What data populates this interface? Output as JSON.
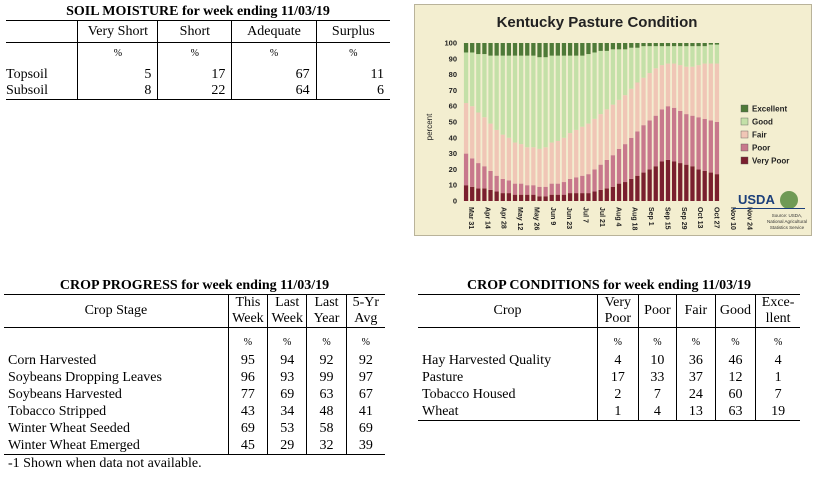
{
  "soil_moisture": {
    "title": "SOIL MOISTURE for week ending 11/03/19",
    "columns": [
      "Very Short",
      "Short",
      "Adequate",
      "Surplus"
    ],
    "pct": [
      "%",
      "%",
      "%",
      "%"
    ],
    "rows": [
      {
        "label": "Topsoil",
        "values": [
          "5",
          "17",
          "67",
          "11"
        ]
      },
      {
        "label": "Subsoil",
        "values": [
          "8",
          "22",
          "64",
          "6"
        ]
      }
    ]
  },
  "chart_data": {
    "type": "bar",
    "stacked": true,
    "title": "Kentucky Pasture Condition",
    "ylabel": "percent",
    "ylim": [
      0,
      100
    ],
    "yticks": [
      "0",
      "10",
      "20",
      "30",
      "40",
      "50",
      "60",
      "70",
      "80",
      "90",
      "100"
    ],
    "xticks": [
      "Mar 31",
      "Apr 14",
      "Apr 28",
      "May 12",
      "May 26",
      "Jun 9",
      "Jun 23",
      "Jul 7",
      "Jul 21",
      "Aug 4",
      "Aug 18",
      "Sep 1",
      "Sep 15",
      "Sep 29",
      "Oct 13",
      "Oct 27",
      "Nov 10",
      "Nov 24"
    ],
    "legend_position": "right",
    "source": [
      "Source: USDA,",
      "National Agricultural",
      "Statistics Service"
    ],
    "logo_text": "USDA",
    "series": [
      {
        "name": "Very Poor",
        "color": "#7a1f2e",
        "values": [
          10,
          9,
          8,
          8,
          7,
          6,
          5,
          5,
          4,
          4,
          4,
          4,
          3,
          3,
          4,
          4,
          4,
          5,
          5,
          5,
          5,
          6,
          7,
          8,
          9,
          11,
          12,
          14,
          16,
          18,
          20,
          22,
          25,
          26,
          25,
          24,
          23,
          22,
          20,
          19,
          18,
          17
        ]
      },
      {
        "name": "Poor",
        "color": "#c8788c",
        "values": [
          20,
          18,
          16,
          14,
          12,
          10,
          9,
          8,
          7,
          7,
          6,
          6,
          6,
          6,
          7,
          7,
          8,
          9,
          10,
          11,
          12,
          14,
          16,
          18,
          20,
          22,
          24,
          26,
          28,
          30,
          31,
          32,
          33,
          34,
          34,
          33,
          32,
          32,
          33,
          33,
          33,
          33
        ]
      },
      {
        "name": "Fair",
        "color": "#f0c6b6",
        "values": [
          32,
          33,
          32,
          31,
          30,
          29,
          28,
          27,
          26,
          25,
          24,
          24,
          24,
          25,
          26,
          27,
          28,
          29,
          30,
          31,
          32,
          32,
          32,
          32,
          32,
          31,
          31,
          31,
          31,
          30,
          30,
          30,
          28,
          27,
          28,
          29,
          30,
          31,
          33,
          35,
          36,
          37
        ]
      },
      {
        "name": "Good",
        "color": "#c4e0a8",
        "values": [
          32,
          34,
          37,
          40,
          43,
          47,
          50,
          52,
          55,
          56,
          58,
          58,
          58,
          57,
          55,
          54,
          52,
          49,
          47,
          45,
          44,
          42,
          40,
          37,
          35,
          32,
          29,
          26,
          22,
          20,
          17,
          14,
          12,
          11,
          11,
          12,
          13,
          13,
          12,
          11,
          12,
          12
        ]
      },
      {
        "name": "Excellent",
        "color": "#4e7a38",
        "values": [
          6,
          6,
          7,
          7,
          8,
          8,
          8,
          8,
          8,
          8,
          8,
          8,
          9,
          9,
          8,
          8,
          8,
          8,
          8,
          8,
          7,
          6,
          5,
          5,
          4,
          4,
          4,
          3,
          3,
          2,
          2,
          2,
          2,
          2,
          2,
          2,
          2,
          2,
          2,
          2,
          1,
          1
        ]
      }
    ]
  },
  "crop_progress": {
    "title": "CROP PROGRESS for week ending 11/03/19",
    "stage_header": "Crop Stage",
    "columns": [
      {
        "l1": "This",
        "l2": "Week"
      },
      {
        "l1": "Last",
        "l2": "Week"
      },
      {
        "l1": "Last",
        "l2": "Year"
      },
      {
        "l1": "5-Yr",
        "l2": "Avg"
      }
    ],
    "pct": [
      "%",
      "%",
      "%",
      "%"
    ],
    "rows": [
      {
        "label": "Corn Harvested",
        "values": [
          "95",
          "94",
          "92",
          "92"
        ]
      },
      {
        "label": "Soybeans Dropping Leaves",
        "values": [
          "96",
          "93",
          "99",
          "97"
        ]
      },
      {
        "label": "Soybeans Harvested",
        "values": [
          "77",
          "69",
          "63",
          "67"
        ]
      },
      {
        "label": "Tobacco Stripped",
        "values": [
          "43",
          "34",
          "48",
          "41"
        ]
      },
      {
        "label": "Winter Wheat Seeded",
        "values": [
          "69",
          "53",
          "58",
          "69"
        ]
      },
      {
        "label": "Winter Wheat Emerged",
        "values": [
          "45",
          "29",
          "32",
          "39"
        ]
      }
    ],
    "note": "-1 Shown when data not available."
  },
  "crop_conditions": {
    "title": "CROP CONDITIONS for week ending 11/03/19",
    "crop_header": "Crop",
    "columns": [
      {
        "l1": "Very",
        "l2": "Poor"
      },
      {
        "l1": "Poor",
        "l2": ""
      },
      {
        "l1": "Fair",
        "l2": ""
      },
      {
        "l1": "Good",
        "l2": ""
      },
      {
        "l1": "Exce-",
        "l2": "llent"
      }
    ],
    "pct": [
      "%",
      "%",
      "%",
      "%",
      "%"
    ],
    "rows": [
      {
        "label": "Hay Harvested Quality",
        "values": [
          "4",
          "10",
          "36",
          "46",
          "4"
        ]
      },
      {
        "label": "Pasture",
        "values": [
          "17",
          "33",
          "37",
          "12",
          "1"
        ]
      },
      {
        "label": "Tobacco Housed",
        "values": [
          "2",
          "7",
          "24",
          "60",
          "7"
        ]
      },
      {
        "label": "Wheat",
        "values": [
          "1",
          "4",
          "13",
          "63",
          "19"
        ]
      }
    ]
  }
}
